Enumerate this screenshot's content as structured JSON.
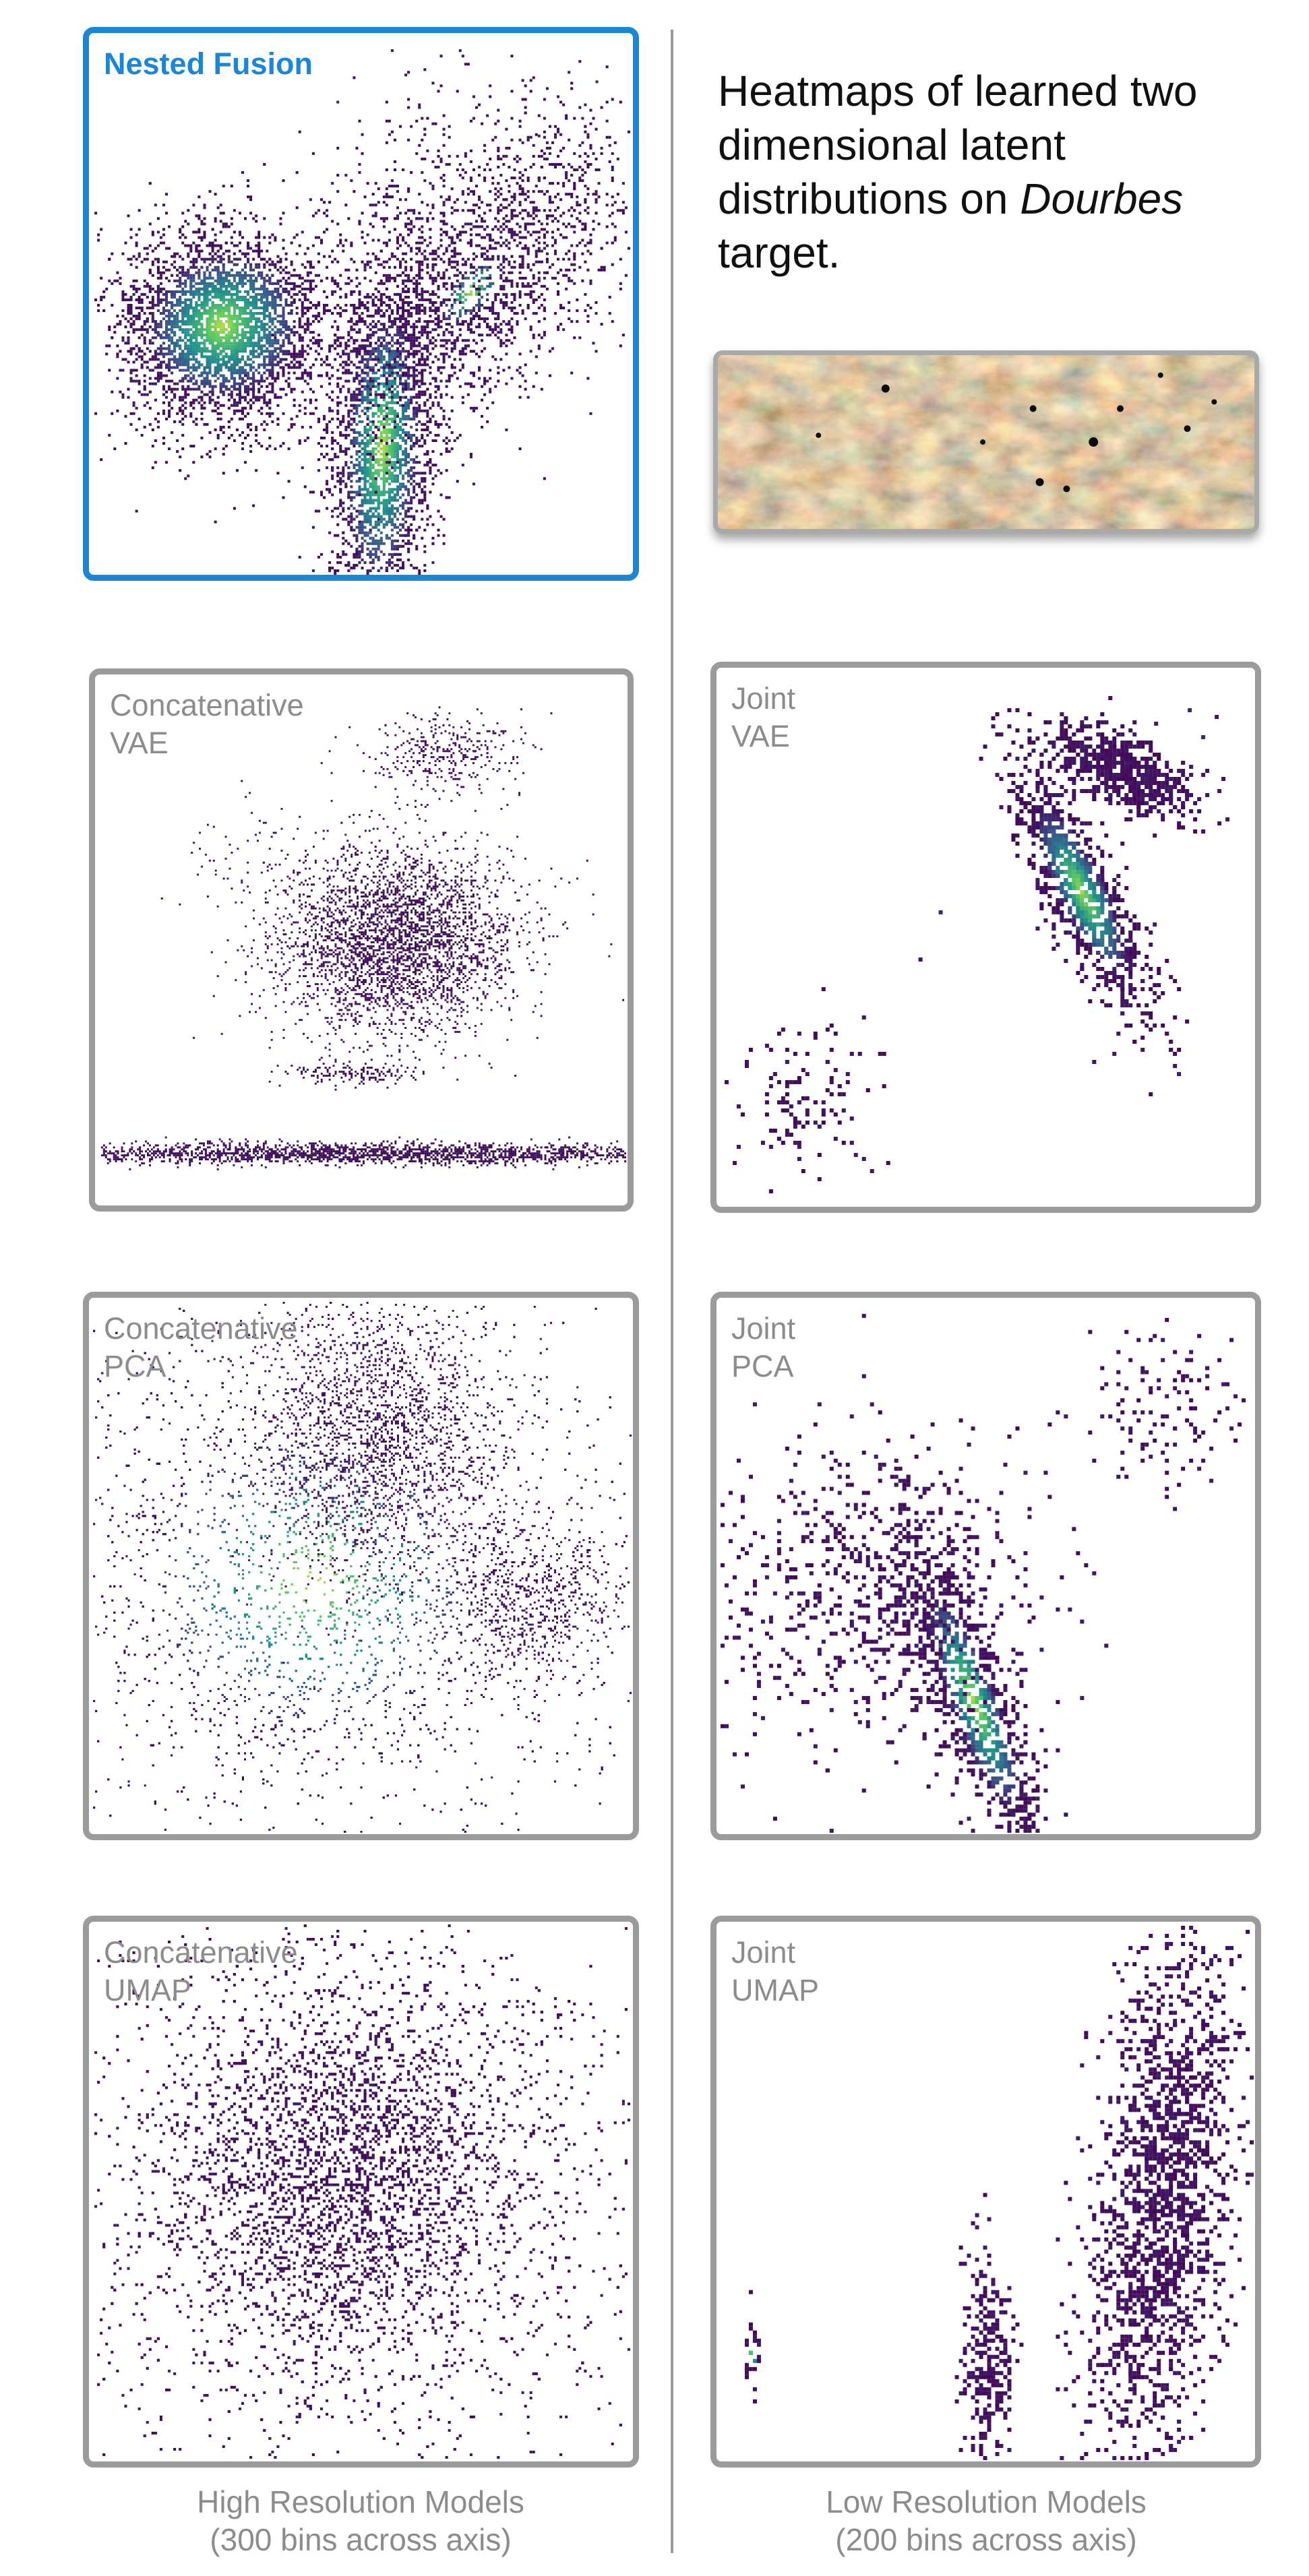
{
  "heading": {
    "text": "Heatmaps of learned two dimensional latent distributions on",
    "target_name": "Dourbes",
    "suffix": "target."
  },
  "panels": [
    {
      "id": "nested_fusion",
      "label": "Nested Fusion",
      "highlight": true
    },
    {
      "id": "concat_vae",
      "label": "Concatenative\nVAE",
      "highlight": false
    },
    {
      "id": "joint_vae",
      "label": "Joint\nVAE",
      "highlight": false
    },
    {
      "id": "concat_pca",
      "label": "Concatenative\nPCA",
      "highlight": false
    },
    {
      "id": "joint_pca",
      "label": "Joint\nPCA",
      "highlight": false
    },
    {
      "id": "concat_umap",
      "label": "Concatenative\nUMAP",
      "highlight": false
    },
    {
      "id": "joint_umap",
      "label": "Joint\nUMAP",
      "highlight": false
    }
  ],
  "captions": {
    "left": "High Resolution Models\n(300 bins across axis)",
    "right": "Low Resolution Models\n(200 bins across axis)"
  },
  "colors": {
    "highlight": "#1a86d6",
    "border": "#9b9b9b",
    "low": "#3b0f57",
    "mid": "#2e7f8e",
    "high": "#8fd14f"
  }
}
